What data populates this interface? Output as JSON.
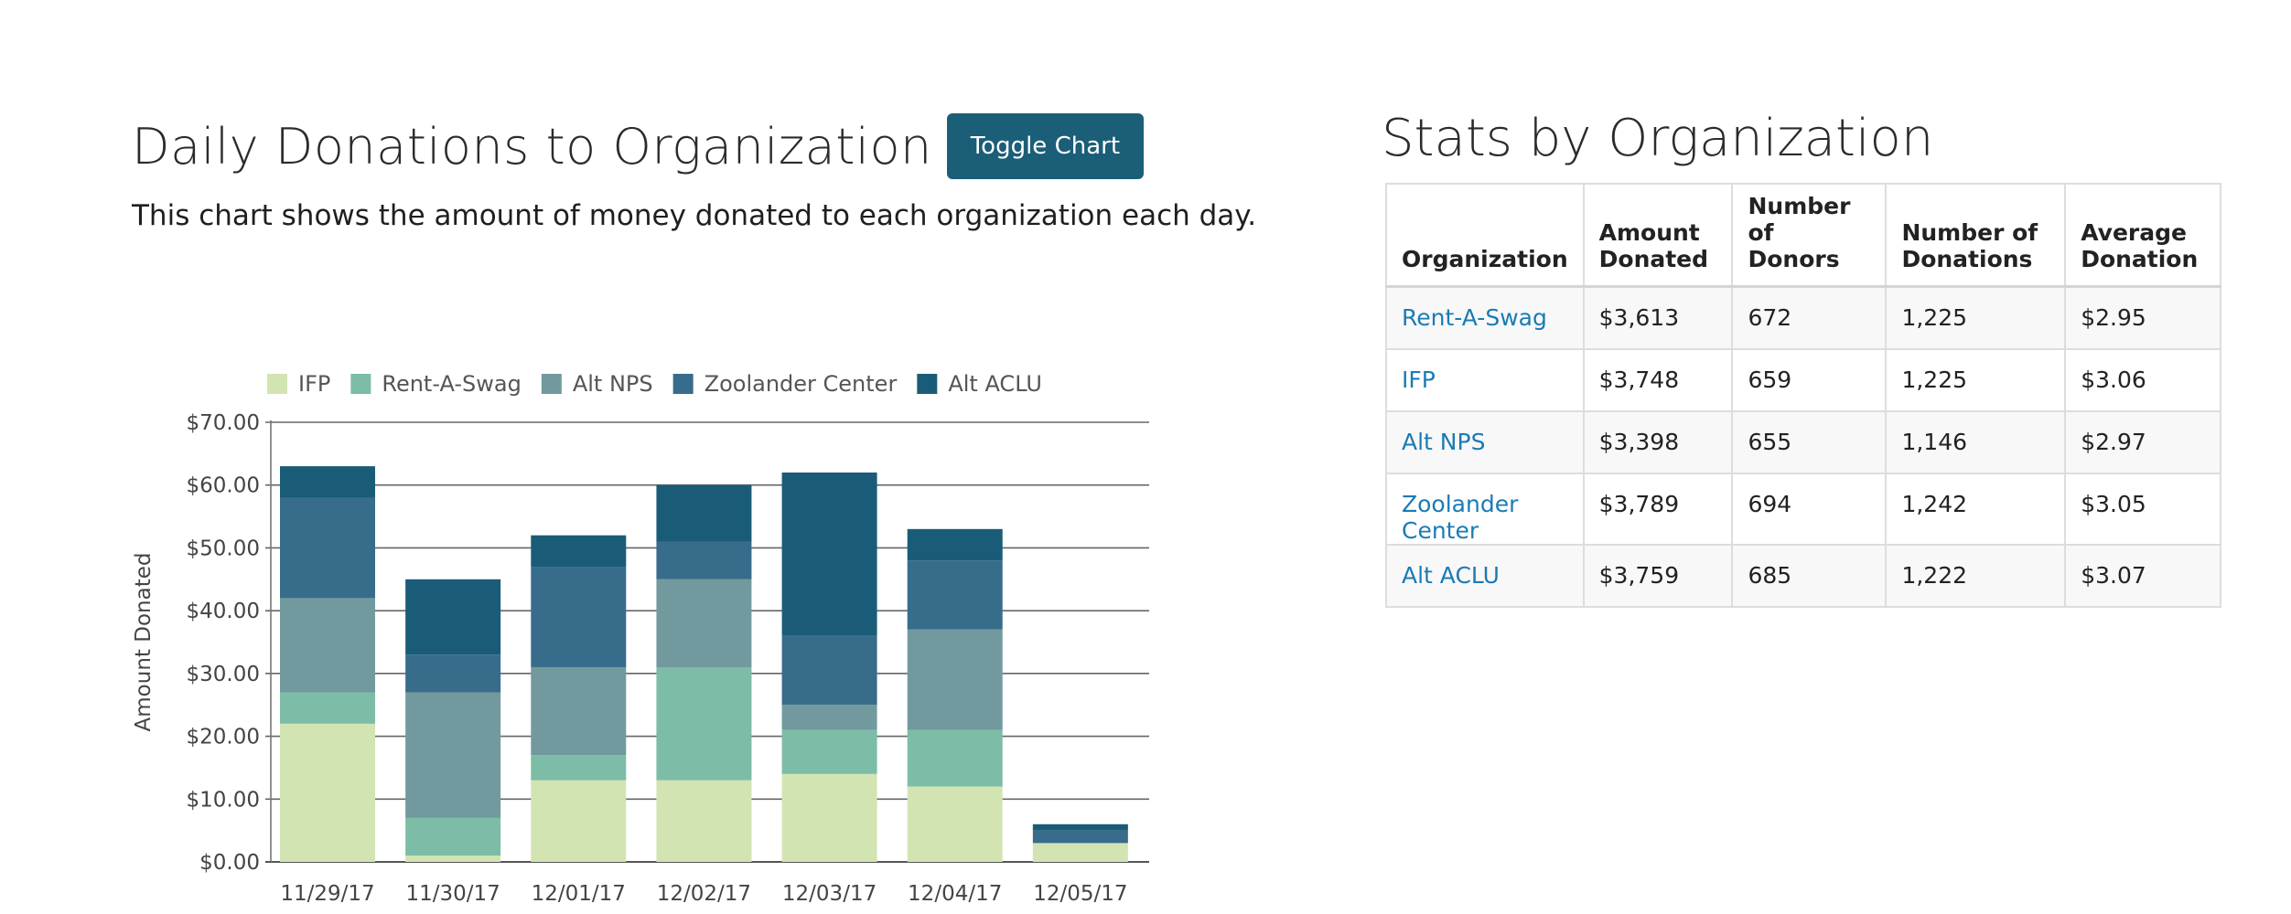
{
  "donations_section": {
    "title": "Daily Donations to Organization",
    "toggle_label": "Toggle Chart",
    "description": "This chart shows the amount of money donated to each organization each day."
  },
  "chart_data": {
    "type": "bar",
    "stacked": true,
    "categories": [
      "11/29/17",
      "11/30/17",
      "12/01/17",
      "12/02/17",
      "12/03/17",
      "12/04/17",
      "12/05/17"
    ],
    "series": [
      {
        "name": "IFP",
        "color": "#d3e4b3",
        "values": [
          22,
          1,
          13,
          13,
          14,
          12,
          3
        ]
      },
      {
        "name": "Rent-A-Swag",
        "color": "#7dbca6",
        "values": [
          5,
          6,
          4,
          18,
          7,
          9,
          0
        ]
      },
      {
        "name": "Alt NPS",
        "color": "#729a9e",
        "values": [
          15,
          20,
          14,
          14,
          4,
          16,
          0
        ]
      },
      {
        "name": "Zoolander Center",
        "color": "#376c8b",
        "values": [
          16,
          6,
          16,
          6,
          11,
          11,
          2
        ]
      },
      {
        "name": "Alt ACLU",
        "color": "#1a5c78",
        "values": [
          5,
          12,
          5,
          9,
          26,
          5,
          1
        ]
      }
    ],
    "ylabel": "Amount Donated",
    "xlabel": "",
    "ylim": [
      0,
      70
    ],
    "yticks": [
      "$0.00",
      "$10.00",
      "$20.00",
      "$30.00",
      "$40.00",
      "$50.00",
      "$60.00",
      "$70.00"
    ],
    "grid": true,
    "legend": "top"
  },
  "stats_section": {
    "title": "Stats by Organization",
    "headers": [
      "Organization",
      "Amount Donated",
      "Number of Donors",
      "Number of Donations",
      "Average Donation"
    ],
    "rows": [
      [
        "Rent-A-Swag",
        "$3,613",
        "672",
        "1,225",
        "$2.95"
      ],
      [
        "IFP",
        "$3,748",
        "659",
        "1,225",
        "$3.06"
      ],
      [
        "Alt NPS",
        "$3,398",
        "655",
        "1,146",
        "$2.97"
      ],
      [
        "Zoolander Center",
        "$3,789",
        "694",
        "1,242",
        "$3.05"
      ],
      [
        "Alt ACLU",
        "$3,759",
        "685",
        "1,222",
        "$3.07"
      ]
    ]
  },
  "colors": {
    "accent": "#1b5e78",
    "link": "#1a7bb5"
  }
}
